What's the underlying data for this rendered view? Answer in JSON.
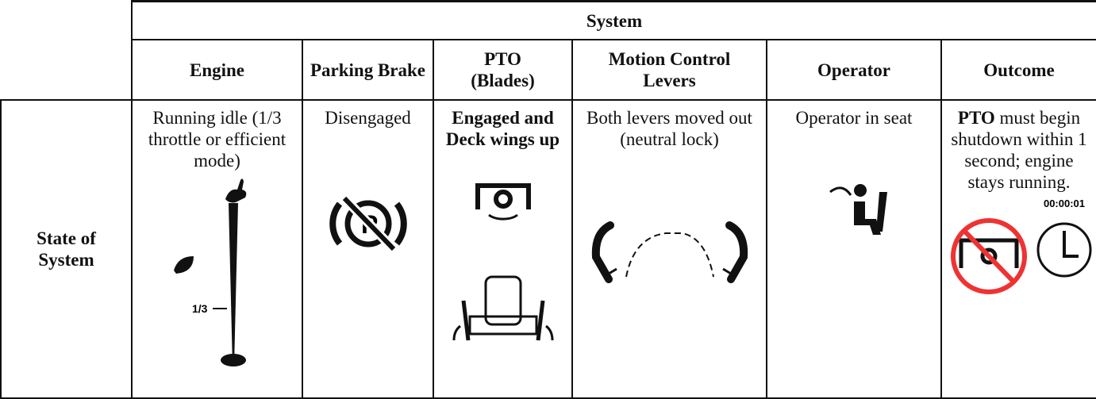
{
  "table": {
    "group_header": "System",
    "columns": [
      "Engine",
      "Parking Brake",
      "PTO (Blades)",
      "Motion Control Levers",
      "Operator",
      "Outcome"
    ],
    "row_header": "State of System",
    "cells": [
      "Running idle (1/3 throttle or efficient mode)",
      "Disengaged",
      "Engaged and Deck wings up",
      "Both levers moved out (neutral lock)",
      "Operator in seat",
      {
        "bold": "PTO",
        "text": "must begin shutdown within 1 second; engine stays running."
      }
    ]
  },
  "icons": {
    "throttle_mark": "1/3",
    "timer": "00:00:01"
  }
}
